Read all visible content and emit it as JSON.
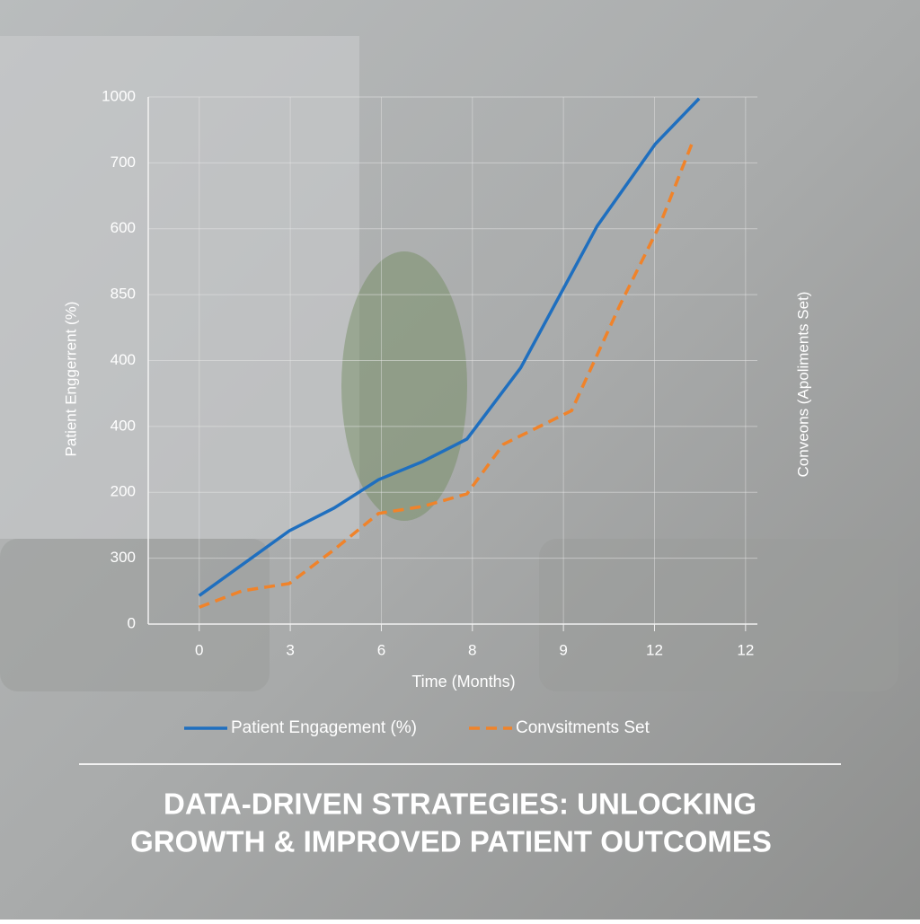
{
  "chart_data": {
    "type": "line",
    "title": "DATA-DRIVEN STRATEGIES: UNLOCKING GROWTH & IMPROVED PATIENT OUTCOMES",
    "x_label": "Time (Months)",
    "y_label": "Patient Enggerrent (%)",
    "y2_label": "Conveons (Apoliments Set)",
    "xlim": [
      -0.56,
      6.13
    ],
    "xticks": [
      0,
      {
        "value": 1,
        "label": "3"
      },
      {
        "value": 2,
        "label": "6"
      },
      {
        "value": 3,
        "label": "8"
      },
      {
        "value": 4,
        "label": "9"
      },
      {
        "value": 5,
        "label": "12"
      },
      {
        "value": 6,
        "label": "12"
      }
    ],
    "ylim": [
      0,
      1000
    ],
    "yticks": [
      0,
      {
        "value": 125,
        "label": "300"
      },
      {
        "value": 250,
        "label": "200"
      },
      {
        "value": 375,
        "label": "400"
      },
      {
        "value": 500,
        "label": "400"
      },
      {
        "value": 625,
        "label": "850"
      },
      {
        "value": 750,
        "label": "600"
      },
      {
        "value": 875,
        "label": "700"
      },
      1000
    ],
    "grid": true,
    "series": [
      {
        "name": "Patient Engagement (%)",
        "color": "#1f6fbf",
        "dashed": false,
        "x": [
          0,
          0.99,
          1.48,
          1.97,
          2.45,
          2.94,
          3.53,
          4.37,
          5.01,
          5.49
        ],
        "values": [
          54,
          177,
          220,
          274,
          308,
          351,
          486,
          755,
          911,
          997
        ]
      },
      {
        "name": "Convsitments Set",
        "color": "#f0832a",
        "dashed": true,
        "x": [
          0,
          0.47,
          0.99,
          1.48,
          1.97,
          2.45,
          2.94,
          3.34,
          4.09,
          4.62,
          5.06,
          5.41
        ],
        "values": [
          32,
          63,
          77,
          141,
          210,
          223,
          247,
          341,
          405,
          605,
          758,
          911
        ]
      }
    ]
  }
}
